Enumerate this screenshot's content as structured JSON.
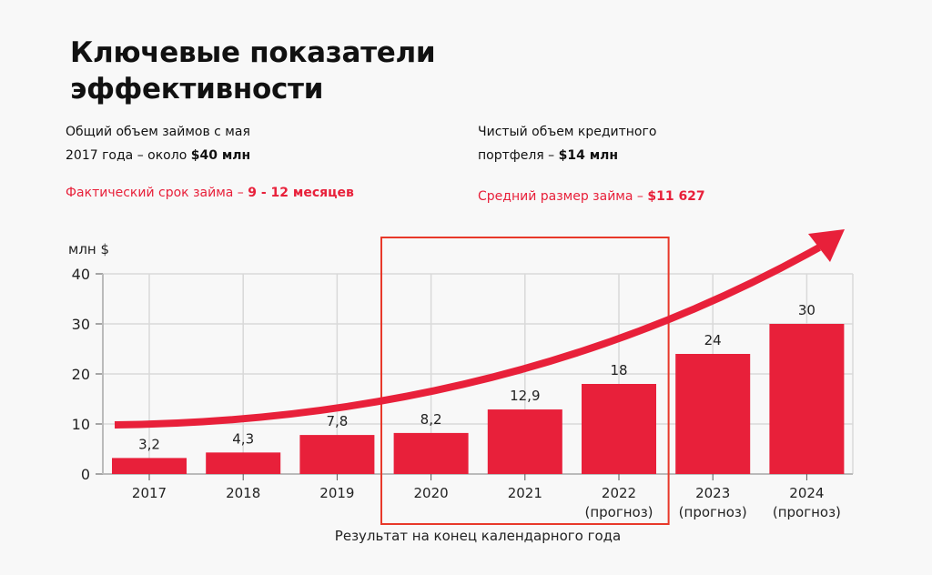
{
  "title": "Ключевые показатели\nэффективности",
  "facts": {
    "total_loans_line1": "Общий объем займов с мая",
    "total_loans_line2": "2017 года – около ",
    "total_loans_value": "$40 млн",
    "portfolio_line1": "Чистый объем кредитного",
    "portfolio_line2": "портфеля – ",
    "portfolio_value": "$14 млн",
    "term_label": "Фактический срок займа – ",
    "term_value": "9 - 12 месяцев",
    "avg_label": "Средний размер займа – ",
    "avg_value": "$11 627"
  },
  "colors": {
    "accent": "#e8203a",
    "grid": "#d9d9d9",
    "highlight_box": "#e8392a"
  },
  "chart_data": {
    "type": "bar",
    "ylabel": "млн $",
    "xlabel": "Результат на конец календарного года",
    "ylim": [
      0,
      40
    ],
    "yticks": [
      0,
      10,
      20,
      30,
      40
    ],
    "grid": true,
    "categories": [
      "2017",
      "2018",
      "2019",
      "2020",
      "2021",
      "2022",
      "2023",
      "2024"
    ],
    "category_sublabels": [
      "",
      "",
      "",
      "",
      "",
      "(прогноз)",
      "(прогноз)",
      "(прогноз)"
    ],
    "values": [
      3.2,
      4.3,
      7.8,
      8.2,
      12.9,
      18,
      24,
      30
    ],
    "data_labels": [
      "3,2",
      "4,3",
      "7,8",
      "8,2",
      "12,9",
      "18",
      "24",
      "30"
    ],
    "highlighted_categories": [
      "2020",
      "2021",
      "2022"
    ],
    "trend_arrow": true
  }
}
